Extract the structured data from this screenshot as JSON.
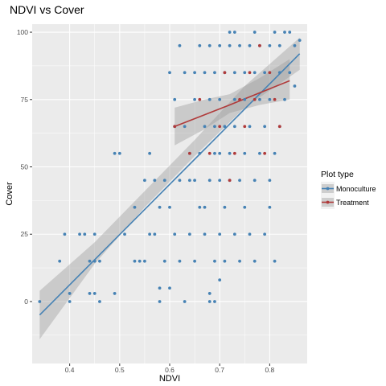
{
  "chart_data": {
    "type": "scatter",
    "title": "NDVI vs Cover",
    "xlabel": "NDVI",
    "ylabel": "Cover",
    "xlim": [
      0.325,
      0.875
    ],
    "ylim": [
      -23,
      103
    ],
    "x_ticks": [
      0.4,
      0.5,
      0.6,
      0.7,
      0.8
    ],
    "x_tick_labels": [
      "0.4",
      "0.5",
      "0.6",
      "0.7",
      "0.8"
    ],
    "y_ticks": [
      0,
      25,
      50,
      75,
      100
    ],
    "y_tick_labels": [
      "0",
      "25",
      "50",
      "75",
      "100"
    ],
    "grid": true,
    "legend": {
      "title": "Plot type",
      "position": "right",
      "entries": [
        "Monoculture",
        "Treatment"
      ]
    },
    "colors": {
      "Monoculture": "#4682b4",
      "Treatment": "#b03a3a",
      "panel": "#ebebeb",
      "grid": "#ffffff",
      "ribbon": "#999999"
    },
    "series": [
      {
        "name": "Monoculture",
        "points": [
          [
            0.34,
            0
          ],
          [
            0.39,
            25
          ],
          [
            0.38,
            15
          ],
          [
            0.4,
            3
          ],
          [
            0.4,
            0
          ],
          [
            0.42,
            25
          ],
          [
            0.43,
            25
          ],
          [
            0.44,
            3
          ],
          [
            0.44,
            15
          ],
          [
            0.45,
            15
          ],
          [
            0.45,
            25
          ],
          [
            0.46,
            15
          ],
          [
            0.45,
            3
          ],
          [
            0.46,
            0
          ],
          [
            0.49,
            3
          ],
          [
            0.49,
            55
          ],
          [
            0.5,
            55
          ],
          [
            0.51,
            25
          ],
          [
            0.53,
            35
          ],
          [
            0.53,
            15
          ],
          [
            0.54,
            15
          ],
          [
            0.55,
            15
          ],
          [
            0.55,
            45
          ],
          [
            0.56,
            55
          ],
          [
            0.56,
            25
          ],
          [
            0.57,
            25
          ],
          [
            0.57,
            45
          ],
          [
            0.58,
            35
          ],
          [
            0.58,
            0
          ],
          [
            0.58,
            5
          ],
          [
            0.59,
            15
          ],
          [
            0.59,
            45
          ],
          [
            0.6,
            5
          ],
          [
            0.6,
            35
          ],
          [
            0.6,
            85
          ],
          [
            0.61,
            75
          ],
          [
            0.61,
            65
          ],
          [
            0.61,
            25
          ],
          [
            0.62,
            15
          ],
          [
            0.62,
            45
          ],
          [
            0.62,
            95
          ],
          [
            0.63,
            0
          ],
          [
            0.63,
            65
          ],
          [
            0.63,
            85
          ],
          [
            0.64,
            45
          ],
          [
            0.64,
            25
          ],
          [
            0.64,
            55
          ],
          [
            0.65,
            45
          ],
          [
            0.65,
            75
          ],
          [
            0.65,
            15
          ],
          [
            0.65,
            85
          ],
          [
            0.66,
            35
          ],
          [
            0.66,
            55
          ],
          [
            0.66,
            95
          ],
          [
            0.67,
            65
          ],
          [
            0.67,
            25
          ],
          [
            0.67,
            85
          ],
          [
            0.67,
            35
          ],
          [
            0.68,
            3
          ],
          [
            0.68,
            0
          ],
          [
            0.68,
            45
          ],
          [
            0.68,
            75
          ],
          [
            0.68,
            95
          ],
          [
            0.69,
            0
          ],
          [
            0.69,
            15
          ],
          [
            0.69,
            55
          ],
          [
            0.69,
            65
          ],
          [
            0.69,
            85
          ],
          [
            0.7,
            45
          ],
          [
            0.7,
            25
          ],
          [
            0.7,
            95
          ],
          [
            0.7,
            55
          ],
          [
            0.7,
            75
          ],
          [
            0.7,
            8
          ],
          [
            0.71,
            35
          ],
          [
            0.71,
            15
          ],
          [
            0.71,
            85
          ],
          [
            0.71,
            65
          ],
          [
            0.72,
            45
          ],
          [
            0.72,
            55
          ],
          [
            0.72,
            95
          ],
          [
            0.72,
            100
          ],
          [
            0.73,
            25
          ],
          [
            0.73,
            75
          ],
          [
            0.73,
            65
          ],
          [
            0.73,
            85
          ],
          [
            0.73,
            100
          ],
          [
            0.74,
            15
          ],
          [
            0.74,
            45
          ],
          [
            0.74,
            95
          ],
          [
            0.75,
            55
          ],
          [
            0.75,
            35
          ],
          [
            0.75,
            85
          ],
          [
            0.75,
            75
          ],
          [
            0.76,
            25
          ],
          [
            0.76,
            65
          ],
          [
            0.76,
            95
          ],
          [
            0.77,
            15
          ],
          [
            0.77,
            45
          ],
          [
            0.77,
            85
          ],
          [
            0.77,
            100
          ],
          [
            0.78,
            75
          ],
          [
            0.78,
            55
          ],
          [
            0.78,
            95
          ],
          [
            0.79,
            65
          ],
          [
            0.79,
            25
          ],
          [
            0.79,
            85
          ],
          [
            0.8,
            35
          ],
          [
            0.8,
            45
          ],
          [
            0.8,
            95
          ],
          [
            0.8,
            75
          ],
          [
            0.81,
            100
          ],
          [
            0.81,
            55
          ],
          [
            0.81,
            15
          ],
          [
            0.82,
            65
          ],
          [
            0.82,
            85
          ],
          [
            0.82,
            95
          ],
          [
            0.83,
            100
          ],
          [
            0.83,
            75
          ],
          [
            0.84,
            85
          ],
          [
            0.84,
            100
          ],
          [
            0.85,
            95
          ],
          [
            0.85,
            80
          ],
          [
            0.86,
            97
          ]
        ]
      },
      {
        "name": "Treatment",
        "points": [
          [
            0.61,
            65
          ],
          [
            0.64,
            55
          ],
          [
            0.66,
            75
          ],
          [
            0.68,
            55
          ],
          [
            0.7,
            65
          ],
          [
            0.71,
            85
          ],
          [
            0.72,
            45
          ],
          [
            0.73,
            55
          ],
          [
            0.74,
            75
          ],
          [
            0.75,
            65
          ],
          [
            0.76,
            85
          ],
          [
            0.77,
            75
          ],
          [
            0.78,
            95
          ],
          [
            0.79,
            55
          ],
          [
            0.8,
            85
          ],
          [
            0.81,
            75
          ],
          [
            0.82,
            65
          ]
        ]
      }
    ],
    "fits": [
      {
        "name": "Monoculture",
        "line": [
          [
            0.34,
            -5
          ],
          [
            0.86,
            92
          ]
        ],
        "band": [
          [
            0.34,
            -14,
            4
          ],
          [
            0.45,
            14,
            22
          ],
          [
            0.55,
            35,
            41
          ],
          [
            0.65,
            54,
            60
          ],
          [
            0.75,
            72,
            80
          ],
          [
            0.86,
            86,
            98
          ]
        ]
      },
      {
        "name": "Treatment",
        "line": [
          [
            0.61,
            65
          ],
          [
            0.72,
            73
          ],
          [
            0.84,
            82
          ]
        ],
        "band": [
          [
            0.61,
            58,
            72
          ],
          [
            0.67,
            64,
            75
          ],
          [
            0.72,
            70,
            77
          ],
          [
            0.78,
            73,
            83
          ],
          [
            0.84,
            75,
            90
          ]
        ]
      }
    ]
  }
}
